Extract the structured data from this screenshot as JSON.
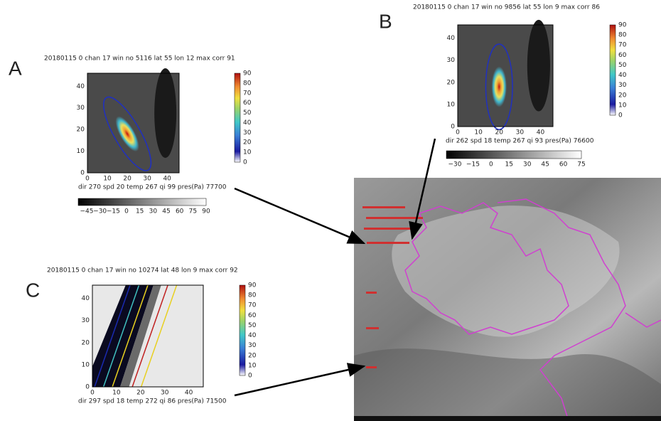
{
  "panels": [
    {
      "letter": "A",
      "title": "20180115 0 chan 17 win no 5116 lat 55 lon 12 max corr 91",
      "footer": "dir  270 spd    20 temp 267 qi   99 pres(Pa)    77700",
      "xticks": [
        "0",
        "10",
        "20",
        "30",
        "40"
      ],
      "yticks": [
        "0",
        "10",
        "20",
        "30",
        "40"
      ],
      "colorbar_ticks": [
        "0",
        "10",
        "20",
        "30",
        "40",
        "50",
        "60",
        "70",
        "80",
        "90"
      ],
      "hbar_ticks": [
        "−45",
        "−30",
        "−15",
        "0",
        "15",
        "30",
        "45",
        "60",
        "75",
        "90"
      ]
    },
    {
      "letter": "B",
      "title": "20180115 0 chan 17 win no 9856 lat 55 lon 9 max corr 86",
      "footer": "dir  262 spd    18 temp 267 qi   93 pres(Pa)    76600",
      "xticks": [
        "0",
        "10",
        "20",
        "30",
        "40"
      ],
      "yticks": [
        "0",
        "10",
        "20",
        "30",
        "40"
      ],
      "colorbar_ticks": [
        "0",
        "10",
        "20",
        "30",
        "40",
        "50",
        "60",
        "70",
        "80",
        "90"
      ],
      "hbar_ticks": [
        "−30",
        "−15",
        "0",
        "15",
        "30",
        "45",
        "60",
        "75"
      ]
    },
    {
      "letter": "C",
      "title": "20180115 0 chan 17 win no 10274 lat 48 lon 9 max corr 92",
      "footer": "dir  297 spd    18 temp 272 qi   86 pres(Pa)    71500",
      "xticks": [
        "0",
        "10",
        "20",
        "30",
        "40"
      ],
      "yticks": [
        "0",
        "10",
        "20",
        "30",
        "40"
      ],
      "colorbar_ticks": [
        "0",
        "10",
        "20",
        "30",
        "40",
        "50",
        "60",
        "70",
        "80",
        "90"
      ]
    }
  ]
}
